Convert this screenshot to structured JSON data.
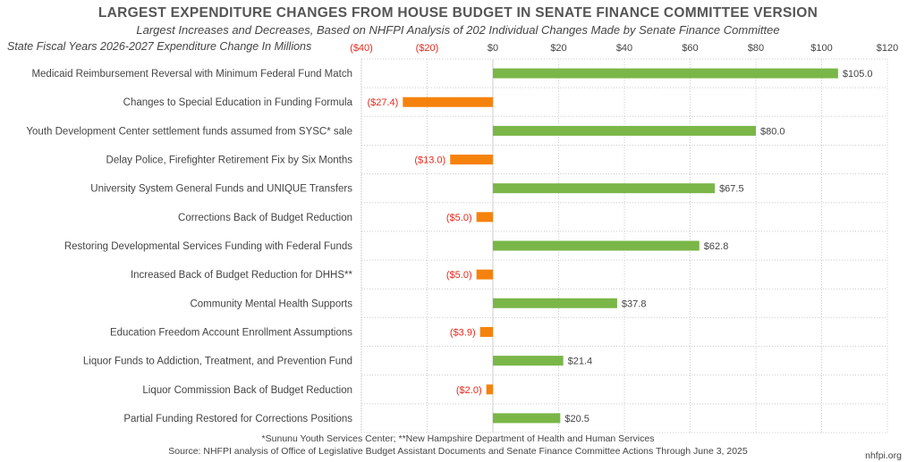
{
  "header": {
    "title": "LARGEST EXPENDITURE CHANGES FROM HOUSE BUDGET IN SENATE FINANCE COMMITTEE VERSION",
    "subtitle": "Largest Increases and Decreases, Based on NHFPI Analysis of 202 Individual Changes Made by Senate Finance Committee",
    "axis_caption": "State Fiscal Years 2026-2027 Expenditure Change In Millions"
  },
  "footer": {
    "footnote": "*Sununu Youth Services Center; **New Hampshire Department of Health and Human Services",
    "source": "Source: NHFPI analysis of Office of Legislative Budget Assistant Documents and Senate Finance Committee Actions Through June 3, 2025",
    "site": "nhfpi.org"
  },
  "colors": {
    "increase": "#7ab648",
    "decrease": "#f5820d",
    "negative_text": "#e8291c",
    "grid": "#cccccc",
    "label_text": "#444444"
  },
  "chart_data": {
    "type": "bar",
    "orientation": "horizontal",
    "grid": true,
    "xlim": [
      -40,
      120
    ],
    "ticks": [
      -40,
      -20,
      0,
      20,
      40,
      60,
      80,
      100,
      120
    ],
    "tick_labels": [
      "($40)",
      "($20)",
      "$0",
      "$20",
      "$40",
      "$60",
      "$80",
      "$100",
      "$120"
    ],
    "categories": [
      "Medicaid Reimbursement Reversal with Minimum Federal Fund Match",
      "Changes to Special Education in Funding Formula",
      "Youth Development Center settlement funds assumed from SYSC* sale",
      "Delay Police, Firefighter Retirement Fix by Six Months",
      "University System General Funds and UNIQUE Transfers",
      "Corrections Back of Budget Reduction",
      "Restoring Developmental Services Funding with Federal Funds",
      "Increased Back of Budget Reduction for DHHS**",
      "Community Mental Health Supports",
      "Education Freedom Account Enrollment Assumptions",
      "Liquor Funds to Addiction, Treatment, and Prevention Fund",
      "Liquor Commission Back of Budget Reduction",
      "Partial Funding Restored for Corrections Positions"
    ],
    "values": [
      105.0,
      -27.4,
      80.0,
      -13.0,
      67.5,
      -5.0,
      62.8,
      -5.0,
      37.8,
      -3.9,
      21.4,
      -2.0,
      20.5
    ],
    "data_labels": [
      "$105.0",
      "($27.4)",
      "$80.0",
      "($13.0)",
      "$67.5",
      "($5.0)",
      "$62.8",
      "($5.0)",
      "$37.8",
      "($3.9)",
      "$21.4",
      "($2.0)",
      "$20.5"
    ]
  }
}
